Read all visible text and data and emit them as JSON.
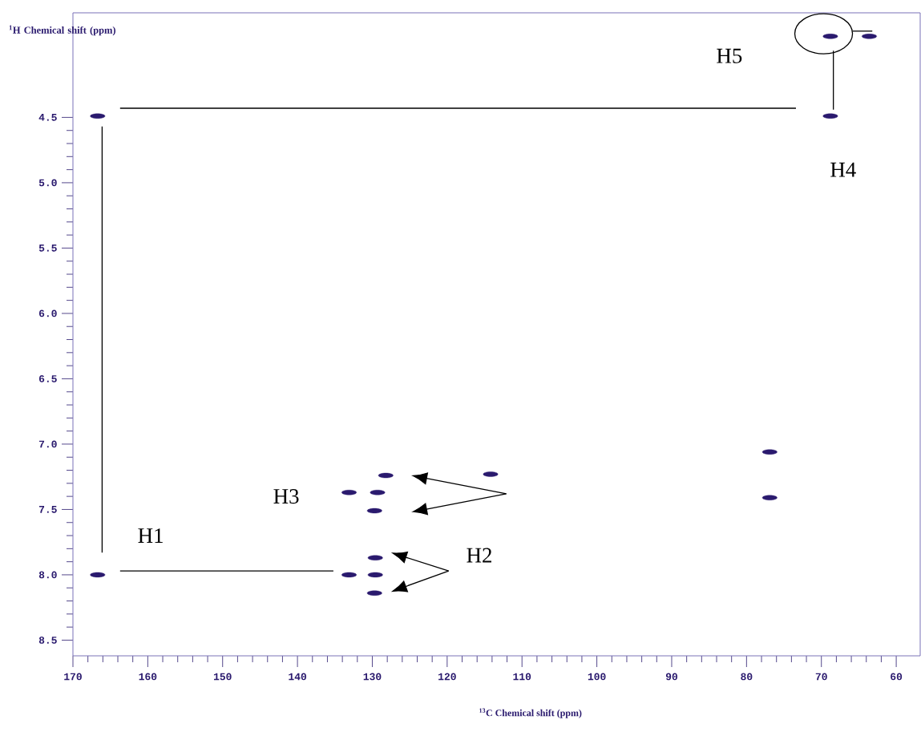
{
  "chart_data": {
    "type": "scatter",
    "xlabel": "$^{13}$C Chemical shift (ppm)",
    "ylabel": "$^{1}$H Chemical shift (ppm)",
    "series": [
      {
        "x": [
          166.7,
          166.7,
          68.8,
          63.6,
          68.8,
          76.9,
          76.9,
          133.1,
          129.3,
          128.2,
          129.7,
          114.2,
          133.1,
          129.6,
          129.6,
          129.7
        ],
        "values": [
          4.49,
          8.0,
          3.88,
          3.88,
          4.49,
          7.06,
          7.41,
          7.37,
          7.37,
          7.24,
          7.51,
          7.23,
          8.0,
          8.0,
          7.87,
          8.14
        ],
        "color": "#2a1a6e",
        "marker": "circle"
      },
      {
        "type": "line",
        "x": [
          163.7,
          73.4
        ],
        "values": [
          4.43,
          4.43
        ],
        "color": "#000000",
        "marker": "none"
      },
      {
        "type": "line",
        "x": [
          166.1,
          166.1
        ],
        "values": [
          4.57,
          7.83
        ],
        "color": "#000000",
        "marker": "none"
      },
      {
        "type": "line",
        "x": [
          163.7,
          135.2
        ],
        "values": [
          7.97,
          7.97
        ],
        "color": "#000000",
        "marker": "none"
      },
      {
        "type": "line",
        "x": [
          68.4,
          68.4
        ],
        "values": [
          3.99,
          4.44
        ],
        "color": "#000000",
        "marker": "none"
      }
    ],
    "xlim": [
      170,
      56.8
    ],
    "ylim": [
      8.62,
      3.7
    ],
    "xticks": [
      170,
      160,
      150,
      140,
      130,
      120,
      110,
      100,
      90,
      80,
      70,
      60
    ],
    "yticks": [
      4.5,
      {
        "value": 5,
        "label": "5.0"
      },
      5.5,
      {
        "value": 6,
        "label": "6.0"
      },
      6.5,
      {
        "value": 7,
        "label": "7.0"
      },
      7.5,
      {
        "value": 8,
        "label": "8.0"
      },
      8.5
    ],
    "annotations": [
      "H1",
      "H2",
      "H3",
      "H4",
      "H5"
    ]
  }
}
